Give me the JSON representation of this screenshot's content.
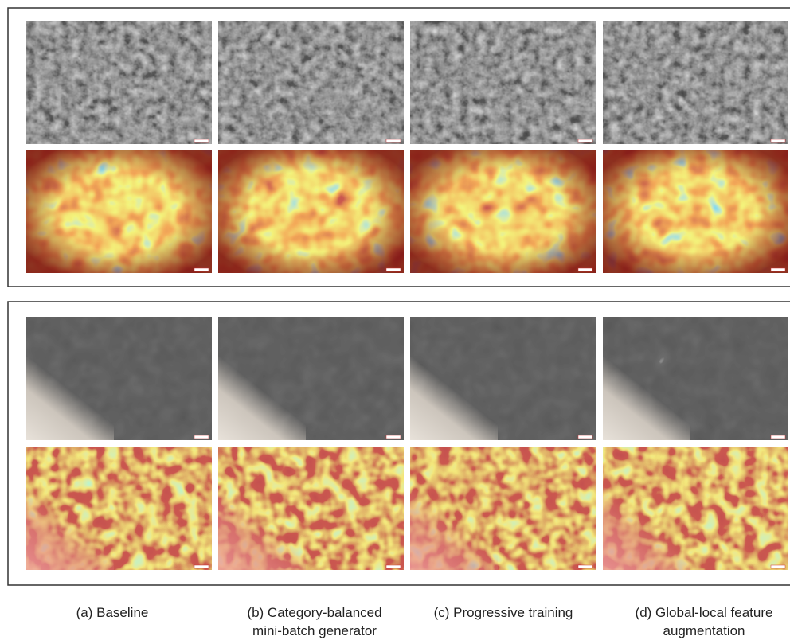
{
  "captions": [
    {
      "lines": [
        "(a) Baseline"
      ]
    },
    {
      "lines": [
        "(b) Category-balanced",
        "mini-batch generator"
      ]
    },
    {
      "lines": [
        "(c) Progressive training"
      ]
    },
    {
      "lines": [
        "(d) Global-local feature",
        "augmentation"
      ]
    }
  ]
}
